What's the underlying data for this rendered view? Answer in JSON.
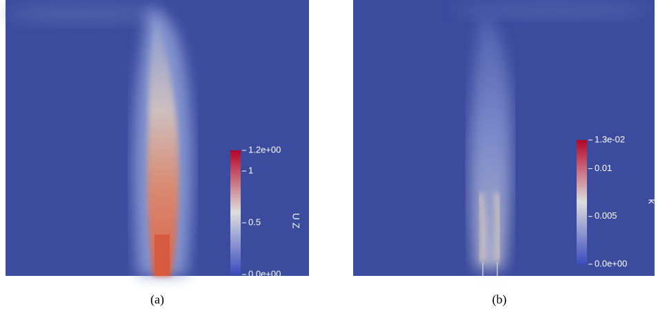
{
  "panels": [
    {
      "caption": "(a)",
      "colorbar": {
        "title": "U Z",
        "range": [
          0,
          1.2
        ],
        "ticks": [
          {
            "value": 1.2,
            "label": "1.2e+00"
          },
          1,
          0.5,
          {
            "value": 0,
            "label": "0.0e+00"
          }
        ]
      }
    },
    {
      "caption": "(b)",
      "colorbar": {
        "title": "k",
        "range": [
          0,
          0.013
        ],
        "ticks": [
          {
            "value": 0.013,
            "label": "1.3e-02"
          },
          0.01,
          0.005,
          {
            "value": 0,
            "label": "0.0e+00"
          }
        ]
      }
    }
  ]
}
